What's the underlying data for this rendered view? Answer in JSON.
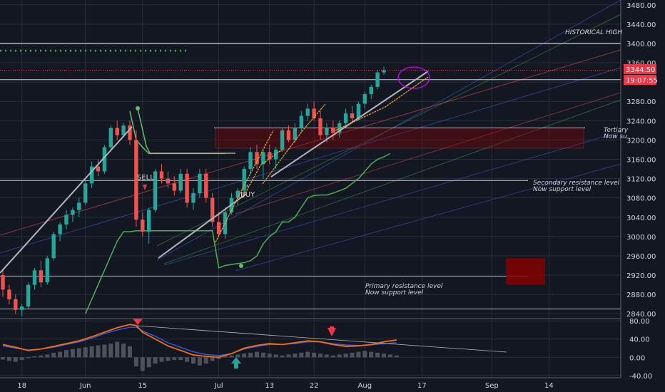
{
  "chart_data": {
    "type": "candlestick",
    "main_ylim": [
      2830,
      3490
    ],
    "main_y_ticks": [
      "3480.00",
      "3440.00",
      "3400.00",
      "3360.00",
      "3320.00",
      "3280.00",
      "3240.00",
      "3200.00",
      "3160.00",
      "3120.00",
      "3080.00",
      "3040.00",
      "3000.00",
      "2960.00",
      "2920.00",
      "2880.00",
      "2840.00"
    ],
    "osc_ylim": [
      -45,
      85
    ],
    "osc_y_ticks": [
      "80.00",
      "40.00",
      "0.00",
      "-40.00"
    ],
    "x_ticks": [
      {
        "label": "18",
        "idx": 3
      },
      {
        "label": "Jun",
        "idx": 13
      },
      {
        "label": "15",
        "idx": 22
      },
      {
        "label": "Jul",
        "idx": 34
      },
      {
        "label": "13",
        "idx": 42
      },
      {
        "label": "22",
        "idx": 49
      },
      {
        "label": "Aug",
        "idx": 57
      },
      {
        "label": "17",
        "idx": 66
      },
      {
        "label": "Sep",
        "idx": 77
      },
      {
        "label": "14",
        "idx": 86
      }
    ],
    "price_tag": {
      "value": "3344.50",
      "timer": "19:07:55"
    },
    "candles": [
      [
        2920,
        2930,
        2875,
        2890
      ],
      [
        2890,
        2900,
        2860,
        2870
      ],
      [
        2870,
        2880,
        2840,
        2848
      ],
      [
        2848,
        2860,
        2835,
        2855
      ],
      [
        2855,
        2905,
        2850,
        2900
      ],
      [
        2900,
        2935,
        2890,
        2930
      ],
      [
        2930,
        2950,
        2895,
        2905
      ],
      [
        2905,
        2960,
        2900,
        2955
      ],
      [
        2955,
        3010,
        2950,
        3005
      ],
      [
        3005,
        3030,
        2990,
        3025
      ],
      [
        3025,
        3055,
        3015,
        3045
      ],
      [
        3045,
        3060,
        3030,
        3055
      ],
      [
        3055,
        3080,
        3040,
        3070
      ],
      [
        3070,
        3115,
        3065,
        3110
      ],
      [
        3110,
        3155,
        3100,
        3145
      ],
      [
        3145,
        3160,
        3125,
        3135
      ],
      [
        3135,
        3190,
        3130,
        3185
      ],
      [
        3185,
        3230,
        3180,
        3225
      ],
      [
        3225,
        3240,
        3200,
        3210
      ],
      [
        3210,
        3235,
        3205,
        3230
      ],
      [
        3230,
        3240,
        3190,
        3200
      ],
      [
        3200,
        3220,
        3020,
        3035
      ],
      [
        3035,
        3050,
        3000,
        3010
      ],
      [
        3010,
        3060,
        2985,
        3055
      ],
      [
        3055,
        3140,
        3050,
        3135
      ],
      [
        3135,
        3150,
        3110,
        3120
      ],
      [
        3120,
        3135,
        3100,
        3110
      ],
      [
        3110,
        3125,
        3085,
        3095
      ],
      [
        3095,
        3140,
        3090,
        3130
      ],
      [
        3130,
        3140,
        3060,
        3070
      ],
      [
        3070,
        3100,
        3055,
        3090
      ],
      [
        3090,
        3140,
        3080,
        3130
      ],
      [
        3130,
        3140,
        3070,
        3080
      ],
      [
        3080,
        3090,
        3020,
        3030
      ],
      [
        3030,
        3050,
        3000,
        3005
      ],
      [
        3005,
        3060,
        2995,
        3050
      ],
      [
        3050,
        3090,
        3045,
        3080
      ],
      [
        3080,
        3100,
        3065,
        3095
      ],
      [
        3095,
        3145,
        3090,
        3140
      ],
      [
        3140,
        3185,
        3130,
        3175
      ],
      [
        3175,
        3190,
        3140,
        3150
      ],
      [
        3150,
        3180,
        3120,
        3175
      ],
      [
        3175,
        3190,
        3150,
        3160
      ],
      [
        3160,
        3185,
        3140,
        3180
      ],
      [
        3180,
        3225,
        3175,
        3220
      ],
      [
        3220,
        3230,
        3195,
        3200
      ],
      [
        3200,
        3235,
        3195,
        3225
      ],
      [
        3225,
        3260,
        3215,
        3250
      ],
      [
        3250,
        3275,
        3240,
        3265
      ],
      [
        3265,
        3280,
        3240,
        3245
      ],
      [
        3245,
        3260,
        3200,
        3210
      ],
      [
        3210,
        3235,
        3195,
        3225
      ],
      [
        3225,
        3240,
        3200,
        3215
      ],
      [
        3215,
        3240,
        3205,
        3235
      ],
      [
        3235,
        3265,
        3225,
        3255
      ],
      [
        3255,
        3270,
        3235,
        3245
      ],
      [
        3245,
        3280,
        3240,
        3275
      ],
      [
        3275,
        3300,
        3265,
        3295
      ],
      [
        3295,
        3315,
        3285,
        3310
      ],
      [
        3310,
        3345,
        3305,
        3340
      ],
      [
        3340,
        3352,
        3335,
        3344.5
      ]
    ],
    "slow_line": [
      [
        13,
        2840
      ],
      [
        14,
        2870
      ],
      [
        15,
        2900
      ],
      [
        16,
        2930
      ],
      [
        17,
        2960
      ],
      [
        18,
        2990
      ],
      [
        19,
        3010
      ],
      [
        20,
        3010
      ],
      [
        21,
        3012
      ],
      [
        22,
        3012
      ],
      [
        23,
        3012
      ],
      [
        24,
        3012
      ],
      [
        25,
        3012
      ],
      [
        26,
        3012
      ],
      [
        27,
        3012
      ],
      [
        28,
        3012
      ],
      [
        29,
        3012
      ],
      [
        30,
        3012
      ],
      [
        31,
        3012
      ],
      [
        32,
        3012
      ],
      [
        33,
        3012
      ],
      [
        34,
        2935
      ],
      [
        35,
        2940
      ],
      [
        36,
        2942
      ],
      [
        37,
        2944
      ],
      [
        38,
        2946
      ],
      [
        39,
        2950
      ],
      [
        40,
        2960
      ],
      [
        41,
        2985
      ],
      [
        42,
        3000
      ],
      [
        43,
        3010
      ],
      [
        44,
        3030
      ],
      [
        45,
        3030
      ],
      [
        46,
        3040
      ],
      [
        47,
        3060
      ],
      [
        48,
        3080
      ],
      [
        49,
        3085
      ],
      [
        50,
        3086
      ],
      [
        51,
        3086
      ],
      [
        52,
        3090
      ],
      [
        53,
        3095
      ],
      [
        54,
        3100
      ],
      [
        55,
        3110
      ],
      [
        56,
        3120
      ],
      [
        57,
        3135
      ],
      [
        58,
        3150
      ],
      [
        59,
        3160
      ],
      [
        60,
        3165
      ],
      [
        61,
        3172
      ]
    ],
    "fast_line": [
      [
        20,
        3260
      ],
      [
        21,
        3200
      ],
      [
        22,
        3185
      ],
      [
        23,
        3172
      ],
      [
        24,
        3172
      ],
      [
        25,
        3172
      ],
      [
        26,
        3172
      ],
      [
        27,
        3172
      ],
      [
        28,
        3172
      ],
      [
        29,
        3172
      ],
      [
        30,
        3172
      ],
      [
        31,
        3172
      ],
      [
        32,
        3172
      ],
      [
        33,
        3172
      ],
      [
        34,
        3172
      ],
      [
        35,
        3172
      ]
    ],
    "osc_fast": [
      [
        0,
        28
      ],
      [
        2,
        22
      ],
      [
        4,
        15
      ],
      [
        6,
        18
      ],
      [
        8,
        24
      ],
      [
        10,
        30
      ],
      [
        12,
        36
      ],
      [
        14,
        45
      ],
      [
        16,
        55
      ],
      [
        18,
        65
      ],
      [
        20,
        72
      ],
      [
        21,
        70
      ],
      [
        22,
        55
      ],
      [
        24,
        40
      ],
      [
        26,
        25
      ],
      [
        28,
        15
      ],
      [
        30,
        5
      ],
      [
        32,
        2
      ],
      [
        34,
        0
      ],
      [
        36,
        8
      ],
      [
        38,
        20
      ],
      [
        40,
        26
      ],
      [
        42,
        30
      ],
      [
        44,
        28
      ],
      [
        46,
        32
      ],
      [
        48,
        36
      ],
      [
        50,
        34
      ],
      [
        52,
        28
      ],
      [
        54,
        24
      ],
      [
        56,
        25
      ],
      [
        58,
        28
      ],
      [
        60,
        34
      ],
      [
        62,
        38
      ]
    ],
    "osc_slow": [
      [
        0,
        25
      ],
      [
        2,
        20
      ],
      [
        4,
        16
      ],
      [
        6,
        18
      ],
      [
        8,
        22
      ],
      [
        10,
        28
      ],
      [
        12,
        34
      ],
      [
        14,
        42
      ],
      [
        16,
        52
      ],
      [
        18,
        60
      ],
      [
        20,
        66
      ],
      [
        21,
        66
      ],
      [
        22,
        58
      ],
      [
        24,
        46
      ],
      [
        26,
        32
      ],
      [
        28,
        22
      ],
      [
        30,
        12
      ],
      [
        32,
        6
      ],
      [
        34,
        4
      ],
      [
        36,
        8
      ],
      [
        38,
        18
      ],
      [
        40,
        24
      ],
      [
        42,
        28
      ],
      [
        44,
        28
      ],
      [
        46,
        30
      ],
      [
        48,
        34
      ],
      [
        50,
        34
      ],
      [
        52,
        30
      ],
      [
        54,
        27
      ],
      [
        56,
        26
      ],
      [
        58,
        27
      ],
      [
        60,
        30
      ],
      [
        62,
        32
      ]
    ],
    "osc_hist": [
      -5,
      -8,
      -10,
      -6,
      -2,
      2,
      4,
      6,
      10,
      12,
      16,
      18,
      20,
      22,
      24,
      26,
      28,
      30,
      34,
      30,
      24,
      -20,
      -30,
      -22,
      -14,
      -10,
      -8,
      -6,
      -6,
      -10,
      -14,
      -18,
      -14,
      -8,
      -4,
      2,
      4,
      6,
      8,
      10,
      12,
      10,
      8,
      6,
      4,
      6,
      8,
      10,
      12,
      10,
      8,
      6,
      4,
      6,
      8,
      10,
      12,
      14,
      12,
      10,
      8,
      6,
      4
    ],
    "annotations": {
      "historical_high": "HISTORICAL HIGH",
      "tertiary_1": "Tertiary",
      "tertiary_2": "Now su",
      "secondary_1": "Secondary resistance level",
      "secondary_2": "Now support level",
      "primary_1": "Primary resistance level",
      "primary_2": "Now support level",
      "sell": "SELL",
      "buy": "BUY"
    },
    "colors": {
      "background": "#131722",
      "grid": "#2a2e39",
      "up": "#26a69a",
      "down": "#ef5350",
      "tag": "#f23645",
      "slow_line": "#4caf50",
      "resistance_zone": "#8b0000",
      "osc_fast": "#ff6d00",
      "osc_slow": "#2962ff"
    }
  }
}
